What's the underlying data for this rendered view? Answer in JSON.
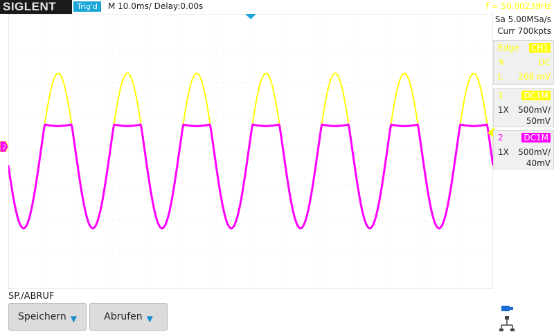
{
  "header": {
    "brand": "SIGLENT",
    "trig_status": "Trig'd",
    "timebase": "M 10.0ms/ Delay:0.00s",
    "frequency": "f = 50.00239Hz"
  },
  "acquisition": {
    "sample_rate": "Sa 5.00MSa/s",
    "memory_depth": "Curr 700kpts"
  },
  "trigger_panel": {
    "mode_label": "Edge",
    "source": "CH1",
    "slope_icon": "rising-edge-icon",
    "coupling": "DC",
    "level_label": "L",
    "level": "208 mV"
  },
  "channels": [
    {
      "num": "1",
      "coupling": "DC1M",
      "probe": "1X",
      "scale": "500mV/",
      "offset": "50mV",
      "color": "#ffff00"
    },
    {
      "num": "2",
      "coupling": "DC1M",
      "probe": "1X",
      "scale": "500mV/",
      "offset": "40mV",
      "color": "#ff00ff"
    }
  ],
  "menu": {
    "title": "SP./ABRUF",
    "buttons": [
      {
        "label": "Speichern",
        "icon": "chevron-down-icon"
      },
      {
        "label": "Abrufen",
        "icon": "chevron-down-icon"
      }
    ]
  },
  "colors": {
    "ch1": "#ffff00",
    "ch2": "#ff00ff",
    "accent": "#1aa7d8"
  },
  "chart_data": {
    "type": "line",
    "grid": true,
    "divisions": {
      "x": 14,
      "y": 8
    },
    "series": [
      {
        "name": "CH1",
        "shape": "sine",
        "cycles": 7,
        "color": "#ffff00"
      },
      {
        "name": "CH2",
        "shape": "clipped-sine",
        "cycles": 7,
        "color": "#ff00ff"
      }
    ]
  }
}
